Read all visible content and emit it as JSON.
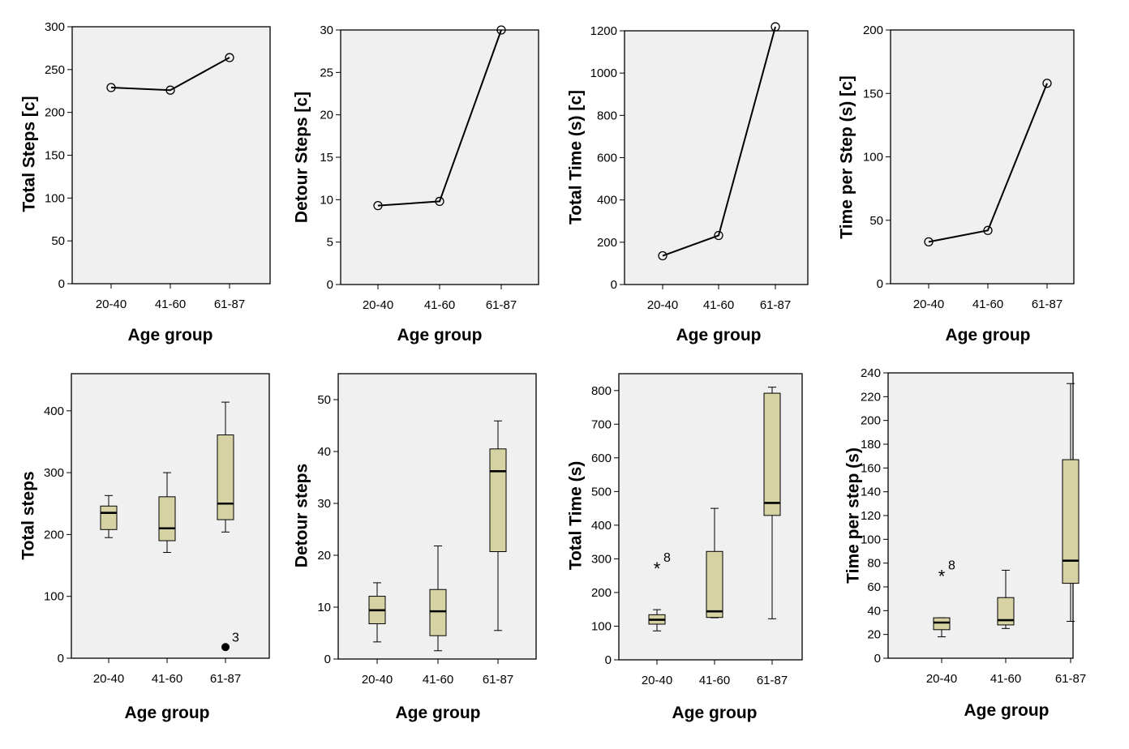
{
  "chart_data": [
    {
      "type": "line",
      "xlabel": "Age group",
      "ylabel": "Total Steps [c]",
      "categories": [
        "20-40",
        "41-60",
        "61-87"
      ],
      "ylim": [
        0,
        300
      ],
      "yticks": [
        0,
        50,
        100,
        150,
        200,
        250,
        300
      ],
      "values": [
        229,
        226,
        264
      ]
    },
    {
      "type": "line",
      "xlabel": "Age group",
      "ylabel": "Detour Steps [c]",
      "categories": [
        "20-40",
        "41-60",
        "61-87"
      ],
      "ylim": [
        0,
        30
      ],
      "yticks": [
        0,
        5,
        10,
        15,
        20,
        25,
        30
      ],
      "values": [
        9.3,
        9.8,
        30
      ]
    },
    {
      "type": "line",
      "xlabel": "Age group",
      "ylabel": "Total Time (s) [c]",
      "categories": [
        "20-40",
        "41-60",
        "61-87"
      ],
      "ylim": [
        0,
        1200
      ],
      "yticks": [
        0,
        200,
        400,
        600,
        800,
        1000,
        1200
      ],
      "values": [
        136,
        232,
        1219
      ]
    },
    {
      "type": "line",
      "xlabel": "Age group",
      "ylabel": "Time per Step (s) [c]",
      "categories": [
        "20-40",
        "41-60",
        "61-87"
      ],
      "ylim": [
        0,
        200
      ],
      "yticks": [
        0,
        50,
        100,
        150,
        200
      ],
      "values": [
        33,
        42,
        158
      ]
    },
    {
      "type": "box",
      "xlabel": "Age group",
      "ylabel": "Total steps",
      "categories": [
        "20-40",
        "41-60",
        "61-87"
      ],
      "ylim": [
        0,
        460
      ],
      "yticks": [
        0,
        100,
        200,
        300,
        400
      ],
      "boxes": [
        {
          "min": 195,
          "q1": 208,
          "median": 235,
          "q3": 246,
          "max": 263
        },
        {
          "min": 171,
          "q1": 190,
          "median": 210,
          "q3": 261,
          "max": 300
        },
        {
          "min": 204,
          "q1": 224,
          "median": 250,
          "q3": 361,
          "max": 414
        }
      ],
      "outliers": [
        {
          "category": "61-87",
          "value": 18,
          "label": "3",
          "marker": "dot"
        }
      ]
    },
    {
      "type": "box",
      "xlabel": "Age group",
      "ylabel": "Detour steps",
      "categories": [
        "20-40",
        "41-60",
        "61-87"
      ],
      "ylim": [
        0,
        55
      ],
      "yticks": [
        0,
        10,
        20,
        30,
        40,
        50
      ],
      "boxes": [
        {
          "min": 3.3,
          "q1": 6.8,
          "median": 9.4,
          "q3": 12.1,
          "max": 14.7
        },
        {
          "min": 1.6,
          "q1": 4.5,
          "median": 9.2,
          "q3": 13.4,
          "max": 21.8
        },
        {
          "min": 5.5,
          "q1": 20.7,
          "median": 36.2,
          "q3": 40.5,
          "max": 45.9
        }
      ],
      "outliers": []
    },
    {
      "type": "box",
      "xlabel": "Age group",
      "ylabel": "Total Time (s)",
      "categories": [
        "20-40",
        "41-60",
        "61-87"
      ],
      "ylim": [
        0,
        850
      ],
      "yticks": [
        0,
        100,
        200,
        300,
        400,
        500,
        600,
        700,
        800
      ],
      "boxes": [
        {
          "min": 86,
          "q1": 106,
          "median": 119,
          "q3": 134,
          "max": 149
        },
        {
          "min": 125,
          "q1": 126,
          "median": 144,
          "q3": 322,
          "max": 450
        },
        {
          "min": 122,
          "q1": 429,
          "median": 466,
          "q3": 792,
          "max": 810
        }
      ],
      "outliers": [
        {
          "category": "20-40",
          "value": 275,
          "label": "8",
          "marker": "star"
        }
      ]
    },
    {
      "type": "box",
      "xlabel": "Age group",
      "ylabel": "Time per step (s)",
      "categories": [
        "20-40",
        "41-60",
        "61-87"
      ],
      "ylim": [
        0,
        240
      ],
      "yticks": [
        0,
        20,
        40,
        60,
        80,
        100,
        120,
        140,
        160,
        180,
        200,
        220,
        240
      ],
      "boxes": [
        {
          "min": 18,
          "q1": 24,
          "median": 30,
          "q3": 34,
          "max": 34
        },
        {
          "min": 25,
          "q1": 28,
          "median": 32,
          "q3": 51,
          "max": 74
        },
        {
          "min": 31,
          "q1": 63,
          "median": 82,
          "q3": 167,
          "max": 231
        }
      ],
      "outliers": [
        {
          "category": "20-40",
          "value": 70,
          "label": "8",
          "marker": "star"
        }
      ]
    }
  ],
  "style": {
    "plot_bg": "#f0f0f0",
    "box_fill": "#d6d2a4",
    "line_color": "#000000"
  }
}
